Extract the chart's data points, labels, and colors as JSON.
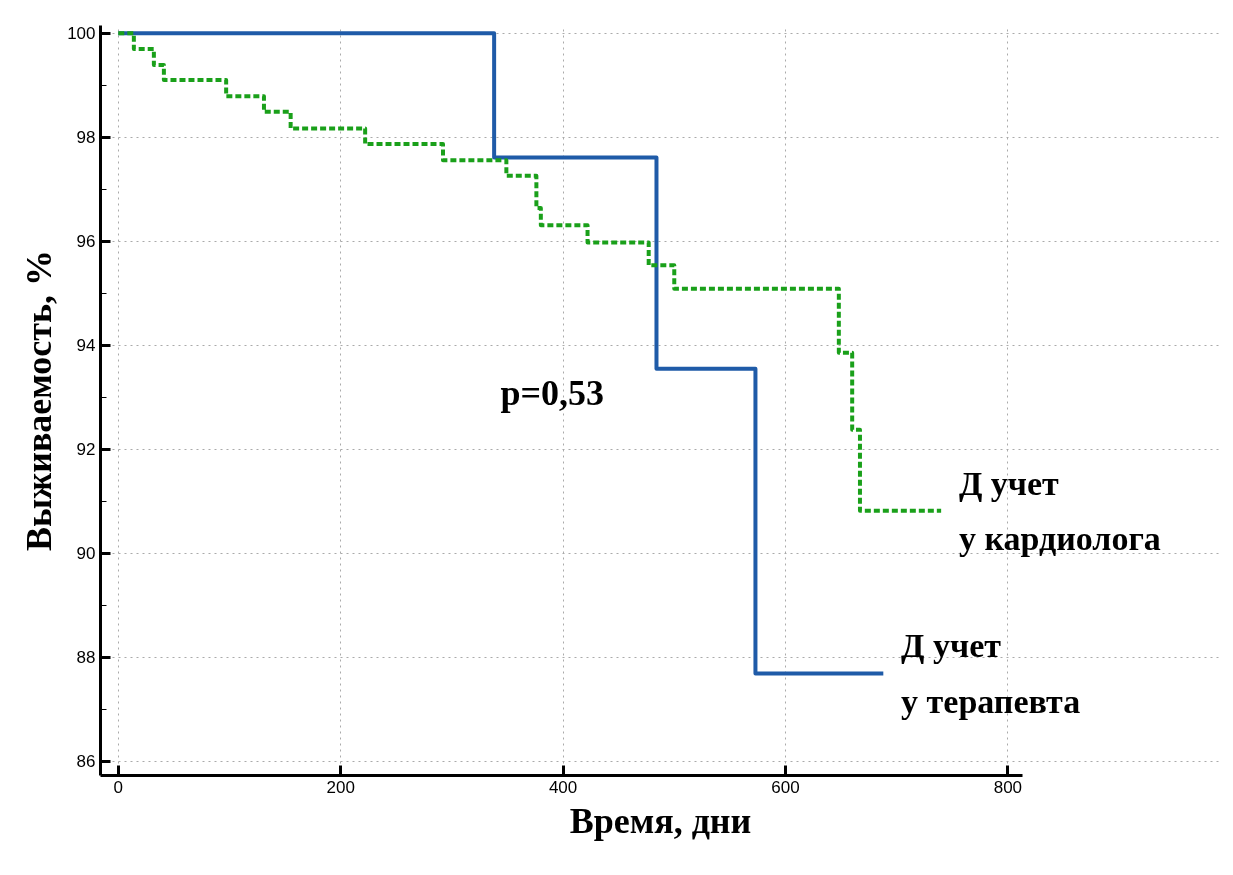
{
  "chart_data": {
    "type": "step",
    "xlabel": "Время, дни",
    "ylabel": "Выживаемость, %",
    "xlim": [
      -16,
      813
    ],
    "ylim": [
      85.73,
      100.15
    ],
    "xticks": [
      0,
      200,
      400,
      600,
      800
    ],
    "yticks": [
      86,
      88,
      90,
      92,
      94,
      96,
      98,
      100
    ],
    "grid": true,
    "annotations": [
      "p=0,53"
    ],
    "series": [
      {
        "name": "Д учет\nу терапевта",
        "color": "#1f5ba8",
        "line_style": "solid",
        "x": [
          0,
          338,
          484,
          573,
          688
        ],
        "values": [
          100,
          97.61,
          93.55,
          87.69,
          87.69
        ]
      },
      {
        "name": "Д учет\nу кардиолога",
        "color": "#1aa01a",
        "line_style": "dashed",
        "x": [
          0,
          14,
          32,
          41,
          97,
          131,
          155,
          222,
          292,
          349,
          376,
          380,
          422,
          477,
          500,
          648,
          660,
          667,
          740
        ],
        "values": [
          100,
          99.7,
          99.39,
          99.1,
          98.79,
          98.49,
          98.17,
          97.87,
          97.56,
          97.26,
          96.64,
          96.31,
          95.98,
          95.54,
          95.09,
          93.86,
          92.38,
          90.82,
          90.82
        ]
      }
    ]
  }
}
